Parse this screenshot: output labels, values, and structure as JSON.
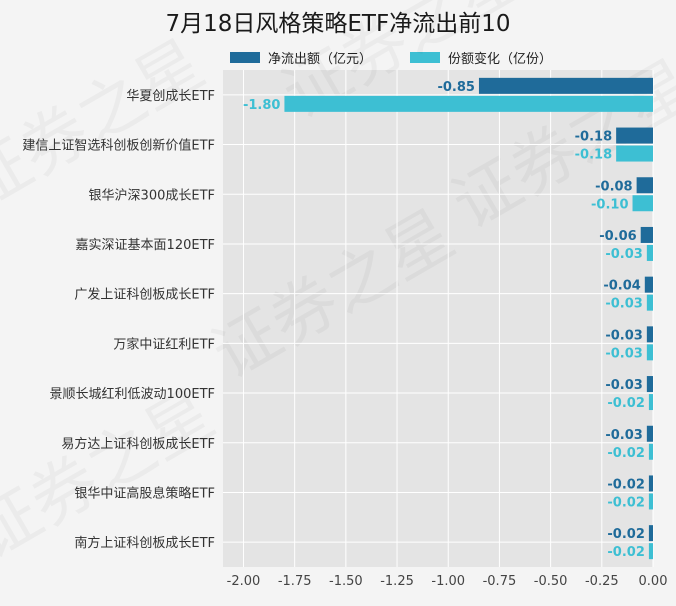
{
  "chart_data": {
    "type": "bar",
    "orientation": "horizontal",
    "title": "7月18日风格策略ETF净流出前10",
    "categories": [
      "华夏创成长ETF",
      "建信上证智选科创板创新价值ETF",
      "银华沪深300成长ETF",
      "嘉实深证基本面120ETF",
      "广发上证科创板成长ETF",
      "万家中证红利ETF",
      "景顺长城红利低波动100ETF",
      "易方达上证科创板成长ETF",
      "银华中证高股息策略ETF",
      "南方上证科创板成长ETF"
    ],
    "series": [
      {
        "name": "净流出额（亿元）",
        "color": "#1f6b9a",
        "values": [
          -0.85,
          -0.18,
          -0.08,
          -0.06,
          -0.04,
          -0.03,
          -0.03,
          -0.03,
          -0.02,
          -0.02
        ],
        "labels": [
          "-0.85",
          "-0.18",
          "-0.08",
          "-0.06",
          "-0.04",
          "-0.03",
          "-0.03",
          "-0.03",
          "-0.02",
          "-0.02"
        ]
      },
      {
        "name": "份额变化（亿份）",
        "color": "#3dbfd3",
        "values": [
          -1.8,
          -0.18,
          -0.1,
          -0.03,
          -0.03,
          -0.03,
          -0.02,
          -0.02,
          -0.02,
          -0.02
        ],
        "labels": [
          "-1.80",
          "-0.18",
          "-0.10",
          "-0.03",
          "-0.03",
          "-0.03",
          "-0.02",
          "-0.02",
          "-0.02",
          "-0.02"
        ]
      }
    ],
    "xlim": [
      -2.1,
      0.0
    ],
    "xticks": [
      -2.0,
      -1.75,
      -1.5,
      -1.25,
      -1.0,
      -0.75,
      -0.5,
      -0.25,
      0.0
    ],
    "xtick_labels": [
      "-2.00",
      "-1.75",
      "-1.50",
      "-1.25",
      "-1.00",
      "-0.75",
      "-0.50",
      "-0.25",
      "0.00"
    ],
    "grid": true,
    "legend_position": "top",
    "watermark": "证券之星"
  }
}
